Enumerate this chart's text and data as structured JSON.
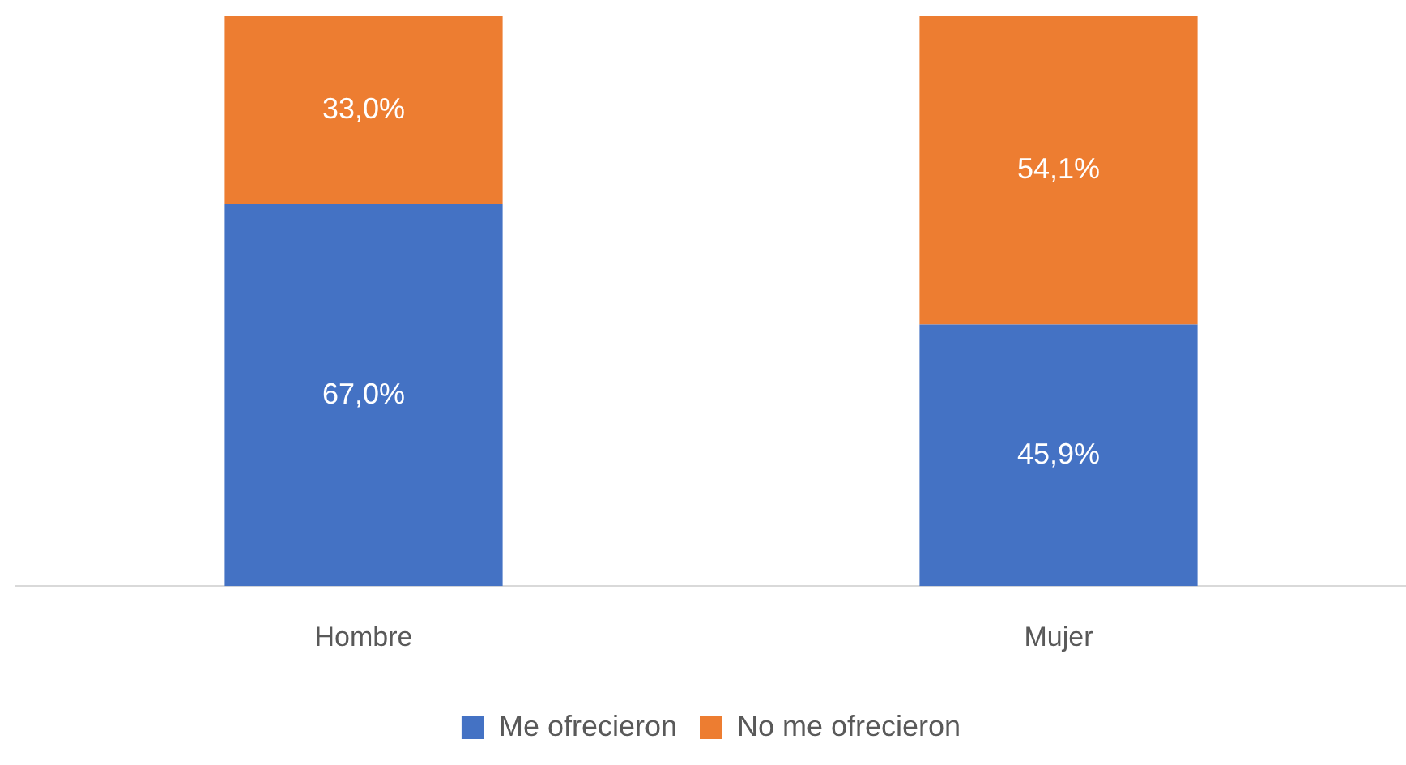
{
  "chart_data": {
    "type": "bar",
    "stacked": true,
    "categories": [
      "Hombre",
      "Mujer"
    ],
    "series": [
      {
        "name": "Me ofrecieron",
        "color": "#4472c4",
        "values": [
          67.0,
          45.9
        ],
        "value_labels": [
          "67,0%",
          "45,9%"
        ]
      },
      {
        "name": "No me ofrecieron",
        "color": "#ed7d31",
        "values": [
          33.0,
          54.1
        ],
        "value_labels": [
          "33,0%",
          "54,1%"
        ]
      }
    ],
    "ylim": [
      0,
      100
    ],
    "tick_labels": "x",
    "grid": false,
    "legend": "bottom"
  }
}
